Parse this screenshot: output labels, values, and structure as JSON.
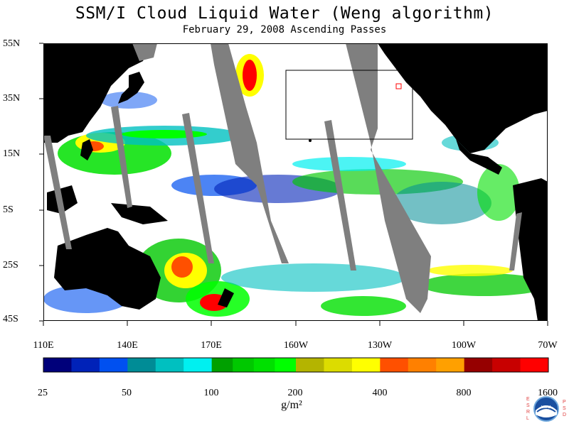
{
  "title": "SSM/I Cloud Liquid Water (Weng algorithm)",
  "subtitle": "February 29, 2008  Ascending Passes",
  "lat_labels": [
    "55N",
    "35N",
    "15N",
    "5S",
    "25S",
    "45S"
  ],
  "lon_labels": [
    "110E",
    "140E",
    "170E",
    "160W",
    "130W",
    "100W",
    "70W"
  ],
  "colorbar": {
    "ticks": [
      "25",
      "50",
      "100",
      "200",
      "400",
      "800",
      "1600"
    ],
    "units": "g/m²",
    "colors": [
      "#00007a",
      "#0022b8",
      "#0050f0",
      "#008c96",
      "#00c0c0",
      "#00f0f0",
      "#00a000",
      "#00c800",
      "#00e000",
      "#00ff00",
      "#b4b400",
      "#dcdc00",
      "#ffff00",
      "#ff5000",
      "#ff8000",
      "#ffa000",
      "#960000",
      "#c80000",
      "#ff0000"
    ]
  },
  "logo": {
    "center": "NOAA",
    "left": "ESRL",
    "right": "PSD"
  },
  "colors": {
    "land": "#000000",
    "no_data": "#7f7f7f",
    "ocean_clear": "#ffffff"
  }
}
